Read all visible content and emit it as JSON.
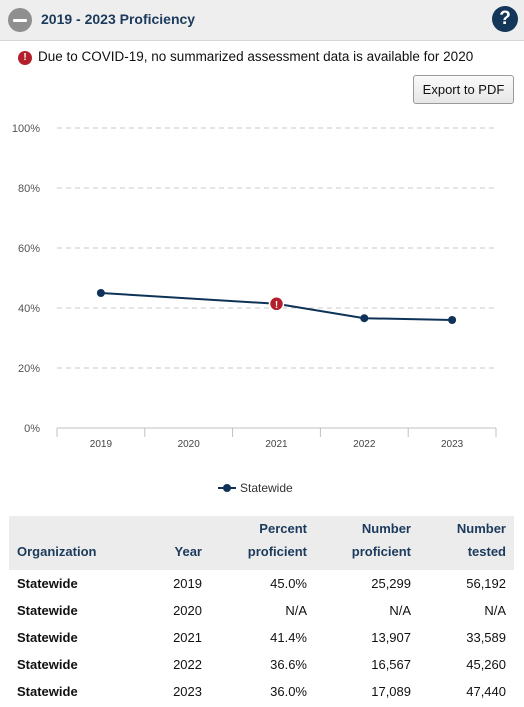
{
  "header": {
    "title": "2019 - 2023 Proficiency",
    "help_label": "?"
  },
  "notice": {
    "icon": "!",
    "text": "Due to COVID-19, no summarized assessment data is available for 2020"
  },
  "toolbar": {
    "export_label": "Export to PDF"
  },
  "chart_data": {
    "type": "line",
    "categories": [
      "2019",
      "2020",
      "2021",
      "2022",
      "2023"
    ],
    "y_ticks": [
      "100%",
      "80%",
      "60%",
      "40%",
      "20%",
      "0%"
    ],
    "ylim": [
      0,
      100
    ],
    "grid": true,
    "legend_position": "bottom",
    "series": [
      {
        "name": "Statewide",
        "values": [
          45.0,
          null,
          41.4,
          36.6,
          36.0
        ],
        "color": "#0f3358"
      }
    ],
    "annotation": {
      "category": "2021",
      "symbol": "!",
      "color": "#b3202b"
    }
  },
  "table": {
    "headers": [
      {
        "line1": "",
        "line2": "Organization"
      },
      {
        "line1": "",
        "line2": "Year"
      },
      {
        "line1": "Percent",
        "line2": "proficient"
      },
      {
        "line1": "Number",
        "line2": "proficient"
      },
      {
        "line1": "Number",
        "line2": "tested"
      }
    ],
    "rows": [
      [
        "Statewide",
        "2019",
        "45.0%",
        "25,299",
        "56,192"
      ],
      [
        "Statewide",
        "2020",
        "N/A",
        "N/A",
        "N/A"
      ],
      [
        "Statewide",
        "2021",
        "41.4%",
        "13,907",
        "33,589"
      ],
      [
        "Statewide",
        "2022",
        "36.6%",
        "16,567",
        "45,260"
      ],
      [
        "Statewide",
        "2023",
        "36.0%",
        "17,089",
        "47,440"
      ]
    ]
  }
}
